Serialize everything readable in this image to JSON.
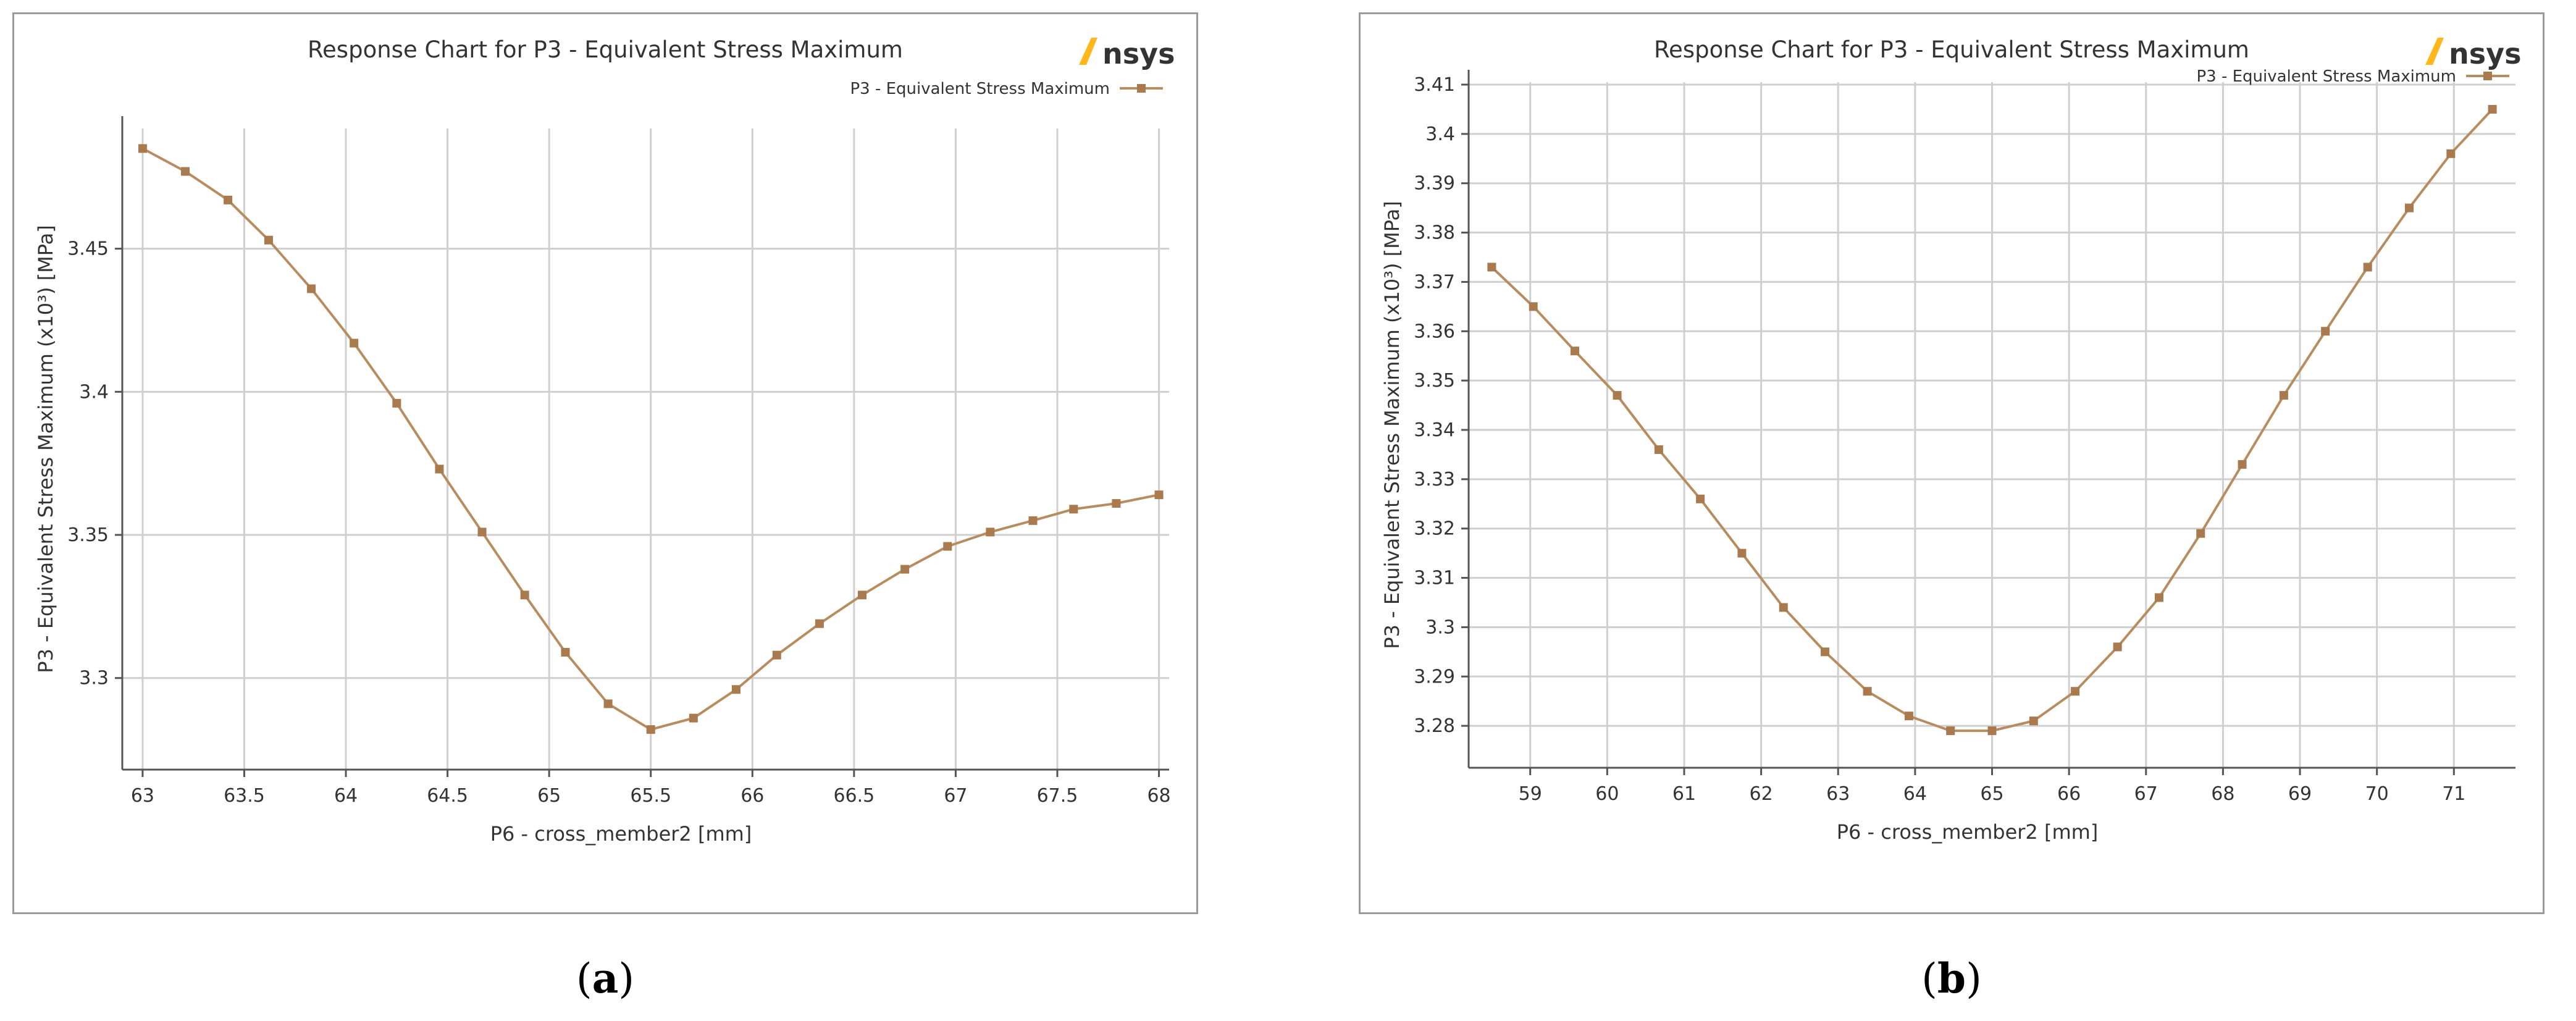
{
  "chart_data": [
    {
      "type": "line",
      "panel_label": "a",
      "title": "Response Chart for P3 - Equivalent Stress Maximum",
      "logo_text": "Ansys",
      "xlabel": "P6 - cross_member2  [mm]",
      "ylabel": "P3 - Equivalent Stress Maximum  (x10³)  [MPa]",
      "xlim": [
        62.9,
        68.05
      ],
      "ylim": [
        3.268,
        3.492
      ],
      "xticks": [
        63,
        63.5,
        64,
        64.5,
        65,
        65.5,
        66,
        66.5,
        67,
        67.5,
        68
      ],
      "xtick_labels": [
        "63",
        "63.5",
        "64",
        "64.5",
        "65",
        "65.5",
        "66",
        "66.5",
        "67",
        "67.5",
        "68"
      ],
      "yticks": [
        3.3,
        3.35,
        3.4,
        3.45
      ],
      "ytick_labels": [
        "3.3",
        "3.35",
        "3.4",
        "3.45"
      ],
      "grid": true,
      "legend_position": "top-right",
      "series": [
        {
          "name": "P3 - Equivalent Stress Maximum",
          "color": "#b78c5f",
          "x": [
            63.0,
            63.21,
            63.42,
            63.62,
            63.83,
            64.04,
            64.25,
            64.46,
            64.67,
            64.88,
            65.08,
            65.29,
            65.5,
            65.71,
            65.92,
            66.12,
            66.33,
            66.54,
            66.75,
            66.96,
            67.17,
            67.38,
            67.58,
            67.79,
            68.0
          ],
          "y": [
            3.485,
            3.477,
            3.467,
            3.453,
            3.436,
            3.417,
            3.396,
            3.373,
            3.351,
            3.329,
            3.309,
            3.291,
            3.282,
            3.286,
            3.296,
            3.308,
            3.319,
            3.329,
            3.338,
            3.346,
            3.351,
            3.355,
            3.359,
            3.361,
            3.364
          ]
        }
      ]
    },
    {
      "type": "line",
      "panel_label": "b",
      "title": "Response Chart for P3 - Equivalent Stress Maximum",
      "logo_text": "Ansys",
      "xlabel": "P6 - cross_member2  [mm]",
      "ylabel": "P3 - Equivalent Stress Maximum  (x10³)  [MPa]",
      "xlim": [
        58.2,
        71.8
      ],
      "ylim": [
        3.2715,
        3.4105
      ],
      "xticks": [
        59,
        60,
        61,
        62,
        63,
        64,
        65,
        66,
        67,
        68,
        69,
        70,
        71
      ],
      "xtick_labels": [
        "59",
        "60",
        "61",
        "62",
        "63",
        "64",
        "65",
        "66",
        "67",
        "68",
        "69",
        "70",
        "71"
      ],
      "yticks": [
        3.28,
        3.29,
        3.3,
        3.31,
        3.32,
        3.33,
        3.34,
        3.35,
        3.36,
        3.37,
        3.38,
        3.39,
        3.4,
        3.41
      ],
      "ytick_labels": [
        "3.28",
        "3.29",
        "3.3",
        "3.31",
        "3.32",
        "3.33",
        "3.34",
        "3.35",
        "3.36",
        "3.37",
        "3.38",
        "3.39",
        "3.4",
        "3.41"
      ],
      "grid": true,
      "legend_position": "top-right",
      "series": [
        {
          "name": "P3 - Equivalent Stress Maximum",
          "color": "#b78c5f",
          "x": [
            58.5,
            59.04,
            59.58,
            60.13,
            60.67,
            61.21,
            61.75,
            62.29,
            62.83,
            63.38,
            63.92,
            64.46,
            65.0,
            65.54,
            66.08,
            66.63,
            67.17,
            67.71,
            68.25,
            68.79,
            69.33,
            69.88,
            70.42,
            70.96,
            71.5
          ],
          "y": [
            3.373,
            3.365,
            3.356,
            3.347,
            3.336,
            3.326,
            3.315,
            3.304,
            3.295,
            3.287,
            3.282,
            3.279,
            3.279,
            3.281,
            3.287,
            3.296,
            3.306,
            3.319,
            3.333,
            3.347,
            3.36,
            3.373,
            3.385,
            3.396,
            3.405
          ]
        }
      ]
    }
  ]
}
